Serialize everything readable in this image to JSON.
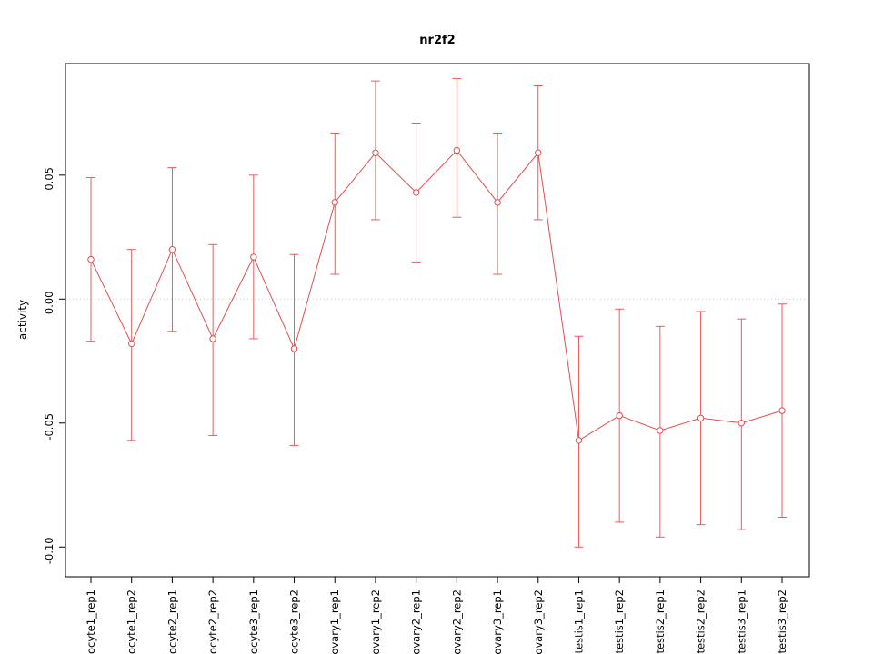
{
  "chart_data": {
    "type": "line",
    "title": "nr2f2",
    "xlabel": "",
    "ylabel": "activity",
    "categories": [
      "oocyte1_rep1",
      "oocyte1_rep2",
      "oocyte2_rep1",
      "oocyte2_rep2",
      "oocyte3_rep1",
      "oocyte3_rep2",
      "ovary1_rep1",
      "ovary1_rep2",
      "ovary2_rep1",
      "ovary2_rep2",
      "ovary3_rep1",
      "ovary3_rep2",
      "testis1_rep1",
      "testis1_rep2",
      "testis2_rep1",
      "testis2_rep2",
      "testis3_rep1",
      "testis3_rep2"
    ],
    "series": [
      {
        "name": "activity",
        "values": [
          0.016,
          -0.018,
          0.02,
          -0.016,
          0.017,
          -0.02,
          0.039,
          0.059,
          0.043,
          0.06,
          0.039,
          0.059,
          -0.057,
          -0.047,
          -0.053,
          -0.048,
          -0.05,
          -0.045
        ],
        "lower": [
          -0.017,
          -0.057,
          -0.013,
          -0.055,
          -0.016,
          -0.059,
          0.01,
          0.032,
          0.015,
          0.033,
          0.01,
          0.032,
          -0.1,
          -0.09,
          -0.096,
          -0.091,
          -0.093,
          -0.088
        ],
        "upper": [
          0.049,
          0.02,
          0.053,
          0.022,
          0.05,
          0.018,
          0.067,
          0.088,
          0.071,
          0.089,
          0.067,
          0.086,
          -0.015,
          -0.004,
          -0.011,
          -0.005,
          -0.008,
          -0.002
        ]
      }
    ],
    "yticks": [
      {
        "value": 0.05,
        "label": "0.05"
      },
      {
        "value": 0.0,
        "label": "0.00"
      },
      {
        "value": -0.05,
        "label": "-0.05"
      },
      {
        "value": -0.1,
        "label": "-0.10"
      }
    ],
    "ylim": [
      -0.112,
      0.095
    ],
    "grid": "dotted horizontal line at y=0",
    "legend": "none",
    "marker": "open-circle",
    "line_color": "#e74c4c",
    "grid_color": "#cccccc",
    "axis_color": "#000000"
  }
}
